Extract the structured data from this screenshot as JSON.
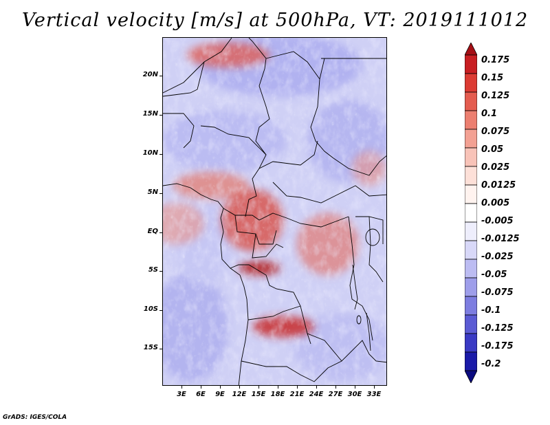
{
  "title": "Vertical velocity [m/s] at 500hPa, VT: 2019111012",
  "footer": "GrADS: IGES/COLA",
  "lat_labels": [
    "20N",
    "15N",
    "10N",
    "5N",
    "EQ",
    "5S",
    "10S",
    "15S"
  ],
  "lon_labels": [
    "3E",
    "6E",
    "9E",
    "12E",
    "15E",
    "18E",
    "21E",
    "24E",
    "27E",
    "30E",
    "33E"
  ],
  "colorbar": {
    "levels": [
      "0.175",
      "0.15",
      "0.125",
      "0.1",
      "0.075",
      "0.05",
      "0.025",
      "0.0125",
      "0.005",
      "-0.005",
      "-0.0125",
      "-0.025",
      "-0.05",
      "-0.075",
      "-0.1",
      "-0.125",
      "-0.175",
      "-0.2"
    ],
    "colors": [
      "#a50f15",
      "#c81e22",
      "#dc3b33",
      "#e45c4f",
      "#ec7f70",
      "#f3a193",
      "#f8c3b8",
      "#fde0d8",
      "#fff3ef",
      "#ffffff",
      "#eeeefc",
      "#d8d8f8",
      "#bcbcf2",
      "#9e9eea",
      "#7d7de0",
      "#5b5bd4",
      "#3a3ac4",
      "#1a1aa8",
      "#0b0b80"
    ]
  }
}
